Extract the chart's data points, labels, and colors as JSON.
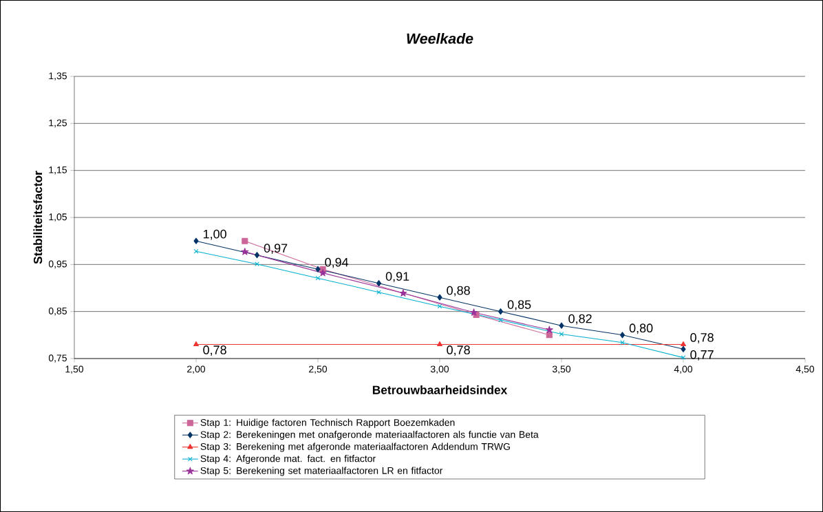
{
  "chart_data": {
    "type": "line",
    "title": "*Weelkade*",
    "xlabel": "Betrouwbaarheidsindex",
    "ylabel": "Stabiliteitsfactor",
    "xlim": [
      1.5,
      4.5
    ],
    "ylim": [
      0.75,
      1.35
    ],
    "xticks": [
      {
        "value": 1.5,
        "label": "1,50"
      },
      {
        "value": 2.0,
        "label": "2,00"
      },
      {
        "value": 2.5,
        "label": "2,50"
      },
      {
        "value": 3.0,
        "label": "3,00"
      },
      {
        "value": 3.5,
        "label": "3,50"
      },
      {
        "value": 4.0,
        "label": "4,00"
      },
      {
        "value": 4.5,
        "label": "4,50"
      }
    ],
    "yticks": [
      {
        "value": 0.75,
        "label": "0,75"
      },
      {
        "value": 0.85,
        "label": "0,85"
      },
      {
        "value": 0.95,
        "label": "0,95"
      },
      {
        "value": 1.05,
        "label": "1,05"
      },
      {
        "value": 1.15,
        "label": "1,15"
      },
      {
        "value": 1.25,
        "label": "1,25"
      },
      {
        "value": 1.35,
        "label": "1,35"
      }
    ],
    "grid": "y",
    "legend": "bottom",
    "series": [
      {
        "name": "Stap 1: Huidige factoren Technisch Rapport Boezemkaden",
        "color": "#cc6699",
        "marker": "square",
        "x": [
          2.2,
          2.52,
          3.15,
          3.45
        ],
        "values": [
          1.0,
          0.94,
          0.843,
          0.8
        ]
      },
      {
        "name": "Stap 2: Berekeningen met onafgeronde materiaalfactoren als functie van Beta",
        "color": "#003366",
        "marker": "diamond",
        "x": [
          2.0,
          2.25,
          2.5,
          2.75,
          3.0,
          3.25,
          3.5,
          3.75,
          4.0
        ],
        "values": [
          1.0,
          0.97,
          0.94,
          0.91,
          0.88,
          0.85,
          0.82,
          0.8,
          0.77
        ],
        "value_labels": [
          "1,00",
          "0,97",
          "0,94",
          "0,91",
          "0,88",
          "0,85",
          "0,82",
          "0,80",
          "0,77"
        ]
      },
      {
        "name": "Stap 3: Berekening met afgeronde materiaalfactoren Addendum TRWG",
        "color": "#ee3333",
        "marker": "triangle",
        "x": [
          2.0,
          3.0,
          4.0
        ],
        "values": [
          0.78,
          0.78,
          0.78
        ],
        "value_labels": [
          "0,78",
          "0,78",
          "0,78"
        ]
      },
      {
        "name": "Stap 4: Afgeronde mat. fact. en fitfactor",
        "color": "#00b0d0",
        "marker": "cross",
        "x": [
          2.0,
          2.25,
          2.5,
          2.75,
          3.0,
          3.25,
          3.5,
          3.75,
          4.0
        ],
        "values": [
          0.978,
          0.951,
          0.921,
          0.891,
          0.861,
          0.832,
          0.802,
          0.784,
          0.752
        ]
      },
      {
        "name": "Stap 5: Berekening set materiaalfactoren LR en fitfactor",
        "color": "#993399",
        "marker": "star",
        "x": [
          2.2,
          2.52,
          2.85,
          3.14,
          3.45
        ],
        "values": [
          0.977,
          0.932,
          0.889,
          0.848,
          0.811
        ]
      }
    ]
  }
}
